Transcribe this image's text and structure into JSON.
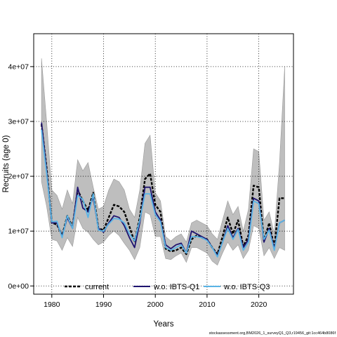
{
  "chart_data": {
    "type": "line",
    "title": "",
    "xlabel": "Years",
    "ylabel": "Recruits (age 0)",
    "xlim": [
      1976.5,
      2026.7
    ],
    "ylim": [
      -1500000,
      46000000
    ],
    "x_ticks": [
      1980,
      1990,
      2000,
      2010,
      2020
    ],
    "x_tick_labels": [
      "1980",
      "1990",
      "2000",
      "2010",
      "2020"
    ],
    "y_ticks": [
      0,
      10000000,
      20000000,
      30000000,
      40000000
    ],
    "y_tick_labels": [
      "0e+00",
      "1e+07",
      "2e+07",
      "3e+07",
      "4e+07"
    ],
    "grid": true,
    "grid_style": "dotted",
    "legend_position": "bottom",
    "x": [
      1978,
      1979,
      1980,
      1981,
      1982,
      1983,
      1984,
      1985,
      1986,
      1987,
      1988,
      1989,
      1990,
      1991,
      1992,
      1993,
      1994,
      1995,
      1996,
      1997,
      1998,
      1999,
      2000,
      2001,
      2002,
      2003,
      2004,
      2005,
      2006,
      2007,
      2008,
      2009,
      2010,
      2011,
      2012,
      2013,
      2014,
      2015,
      2016,
      2017,
      2018,
      2019,
      2020,
      2021,
      2022,
      2023,
      2024,
      2025
    ],
    "band": {
      "color": "#bebebe",
      "upper": [
        41500000,
        30000000,
        17500000,
        16500000,
        14000000,
        17500000,
        15000000,
        23000000,
        21000000,
        22500000,
        18000000,
        14000000,
        14500000,
        17500000,
        19500000,
        19000000,
        17500000,
        14000000,
        12500000,
        17500000,
        26000000,
        27500000,
        17000000,
        15500000,
        9000000,
        8200000,
        9000000,
        9500000,
        8000000,
        11500000,
        12000000,
        11500000,
        11000000,
        9500000,
        8500000,
        12000000,
        15500000,
        13000000,
        14500000,
        10000000,
        14000000,
        25000000,
        24500000,
        12000000,
        13500000,
        9500000,
        22500000,
        40000000
      ],
      "lower": [
        19000000,
        14500000,
        8500000,
        8200000,
        6500000,
        8800000,
        7200000,
        12500000,
        10500000,
        9800000,
        8500000,
        7500000,
        8000000,
        9200000,
        10000000,
        9200000,
        7800000,
        6500000,
        4800000,
        7000000,
        13500000,
        13000000,
        9000000,
        9000000,
        5000000,
        4800000,
        5500000,
        6000000,
        4300000,
        7000000,
        7000000,
        6500000,
        6000000,
        4500000,
        3800000,
        6000000,
        8000000,
        6500000,
        7500000,
        5000000,
        6500000,
        11000000,
        10500000,
        5500000,
        7000000,
        5000000,
        7000000,
        6500000
      ]
    },
    "series": [
      {
        "name": "current",
        "color": "#000000",
        "style": "dashed",
        "values": [
          29500000,
          21500000,
          11500000,
          11200000,
          9200000,
          12800000,
          10800000,
          17500000,
          15500000,
          13800000,
          17000000,
          10500000,
          10200000,
          12500000,
          14800000,
          14500000,
          13500000,
          10800000,
          8000000,
          12500000,
          19500000,
          20500000,
          14800000,
          13500000,
          6800000,
          6300000,
          6500000,
          7000000,
          5800000,
          8500000,
          9200000,
          8800000,
          8500000,
          7000000,
          5800000,
          9000000,
          12500000,
          9500000,
          12000000,
          7200000,
          9200000,
          18300000,
          18000000,
          8200000,
          11500000,
          7000000,
          16000000,
          16000000
        ]
      },
      {
        "name": "w.o. IBTS-Q1",
        "color": "#1f1470",
        "style": "solid",
        "values": [
          29800000,
          21000000,
          11500000,
          11500000,
          9000000,
          12500000,
          10500000,
          18000000,
          14200000,
          13500000,
          16200000,
          10500000,
          9800000,
          11500000,
          12800000,
          12500000,
          11000000,
          8800000,
          7000000,
          11500000,
          18000000,
          18000000,
          13500000,
          12000000,
          7500000,
          6800000,
          7500000,
          7800000,
          6000000,
          10000000,
          9500000,
          9000000,
          8500000,
          7000000,
          5500000,
          8000000,
          11000000,
          8800000,
          10500000,
          7000000,
          8500000,
          16000000,
          15500000,
          8000000,
          10500000,
          6800000,
          11500000,
          12000000
        ]
      },
      {
        "name": "w.o. IBTS-Q3",
        "color": "#5ab4e6",
        "style": "solid",
        "values": [
          28500000,
          20500000,
          11700000,
          11800000,
          8800000,
          12800000,
          10500000,
          16500000,
          15800000,
          12500000,
          16800000,
          10200000,
          10000000,
          11300000,
          12300000,
          12200000,
          11500000,
          9500000,
          8200000,
          12000000,
          16800000,
          16800000,
          13000000,
          11700000,
          7000000,
          6500000,
          7000000,
          7500000,
          6000000,
          9000000,
          9000000,
          8800000,
          8300000,
          7000000,
          5300000,
          8000000,
          10500000,
          8500000,
          10300000,
          6500000,
          8000000,
          15500000,
          15000000,
          8500000,
          10200000,
          6500000,
          11500000,
          12000000
        ]
      }
    ],
    "footer_text": "stockassessment.org,BM2026_1_surveyQ1_Q3,r19456_git:1cc464b8086f"
  }
}
